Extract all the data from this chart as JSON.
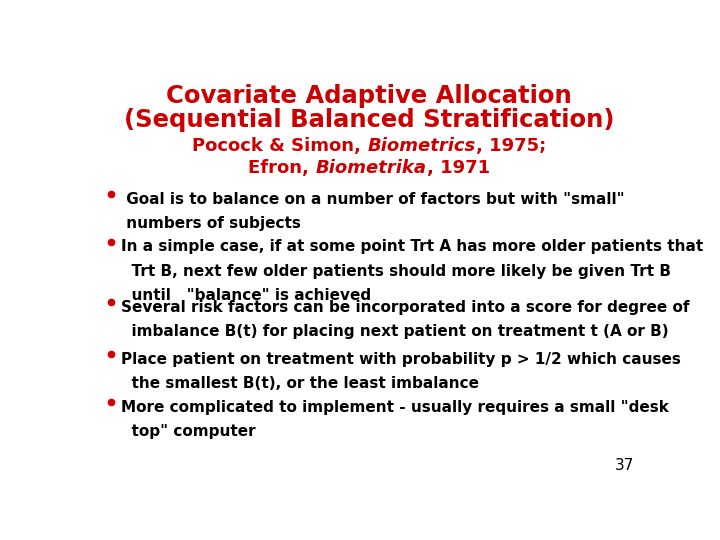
{
  "title_line1": "Covariate Adaptive Allocation",
  "title_line2": "(Sequential Balanced Stratification)",
  "sub1_plain1": "Pocock & Simon, ",
  "sub1_italic": "Biometrics",
  "sub1_plain2": ", 1975;",
  "sub2_plain1": "Efron, ",
  "sub2_italic": "Biometrika",
  "sub2_plain2": ", 1971",
  "title_color": "#CC0000",
  "subtitle_color": "#CC0000",
  "bullet_color": "#CC0000",
  "text_color": "#000000",
  "background_color": "#FFFFFF",
  "bullet1_line1": " Goal is to balance on a number of factors but with \"small\"",
  "bullet1_line2": " numbers of subjects",
  "bullet2_line1": "In a simple case, if at some point Trt A has more older patients that",
  "bullet2_line2": "  Trt B, next few older patients should more likely be given Trt B",
  "bullet2_line3": "  until   \"balance\" is achieved",
  "bullet3_line1": "Several risk factors can be incorporated into a score for degree of",
  "bullet3_line2": "  imbalance B(t) for placing next patient on treatment t (A or B)",
  "bullet4_line1": "Place patient on treatment with probability p > 1/2 which causes",
  "bullet4_line2": "  the smallest B(t), or the least imbalance",
  "bullet5_line1": "More complicated to implement - usually requires a small \"desk",
  "bullet5_line2": "  top\" computer",
  "slide_number": "37",
  "title_fontsize": 17.5,
  "subtitle_fontsize": 13,
  "bullet_fontsize": 11,
  "slide_number_fontsize": 11
}
